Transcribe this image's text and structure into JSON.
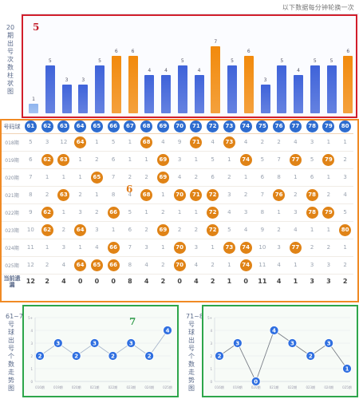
{
  "notice": "以下数据每分钟轮换一次",
  "bar_panel": {
    "side_label": "20期出号次数柱状图",
    "marker": "5",
    "colors": {
      "normal": "#3f63d9",
      "max": "#f28a0c",
      "min": "#8fb4ee"
    }
  },
  "chart_data": [
    {
      "type": "bar",
      "categories": [
        "61",
        "62",
        "63",
        "64",
        "65",
        "66",
        "67",
        "68",
        "69",
        "70",
        "71",
        "72",
        "73",
        "74",
        "75",
        "76",
        "77",
        "78",
        "79",
        "80"
      ],
      "values": [
        1,
        5,
        3,
        3,
        5,
        6,
        6,
        4,
        4,
        5,
        4,
        7,
        5,
        6,
        3,
        5,
        4,
        5,
        5,
        6
      ],
      "ylim": [
        0,
        8
      ]
    },
    {
      "type": "line",
      "x": [
        "016期",
        "019期",
        "020期",
        "021期",
        "022期",
        "023期",
        "024期",
        "025期"
      ],
      "values": [
        2,
        3,
        2,
        3,
        2,
        3,
        2,
        4
      ],
      "ylim": [
        0,
        5
      ],
      "yticks": [
        "0",
        "1",
        "2",
        "3",
        "4",
        "5+"
      ]
    },
    {
      "type": "line",
      "x": [
        "016期",
        "019期",
        "020期",
        "021期",
        "022期",
        "023期",
        "024期",
        "025期"
      ],
      "values": [
        2,
        3,
        0,
        4,
        3,
        2,
        3,
        1
      ],
      "ylim": [
        0,
        5
      ],
      "yticks": [
        "0",
        "1",
        "2",
        "3",
        "4",
        "5+"
      ]
    }
  ],
  "table_panel": {
    "marker": "6",
    "header_label": "号码球",
    "numbers": [
      "61",
      "62",
      "63",
      "64",
      "65",
      "66",
      "67",
      "68",
      "69",
      "70",
      "71",
      "72",
      "73",
      "74",
      "75",
      "76",
      "77",
      "78",
      "79",
      "80"
    ],
    "rows": [
      {
        "label": "018期",
        "cells": [
          "5",
          "3",
          "12",
          "64",
          "1",
          "5",
          "1",
          "68",
          "4",
          "9",
          "71",
          "4",
          "73",
          "4",
          "2",
          "2",
          "4",
          "3",
          "1",
          "1"
        ]
      },
      {
        "label": "019期",
        "cells": [
          "6",
          "62",
          "63",
          "1",
          "2",
          "6",
          "1",
          "1",
          "69",
          "3",
          "1",
          "5",
          "1",
          "74",
          "5",
          "7",
          "77",
          "5",
          "79",
          "2"
        ]
      },
      {
        "label": "020期",
        "cells": [
          "7",
          "1",
          "1",
          "1",
          "65",
          "7",
          "2",
          "2",
          "69",
          "4",
          "2",
          "6",
          "2",
          "1",
          "6",
          "8",
          "1",
          "6",
          "1",
          "3"
        ]
      },
      {
        "label": "021期",
        "cells": [
          "8",
          "2",
          "63",
          "2",
          "1",
          "8",
          "4",
          "68",
          "1",
          "70",
          "71",
          "72",
          "3",
          "2",
          "7",
          "76",
          "2",
          "78",
          "2",
          "4"
        ]
      },
      {
        "label": "022期",
        "cells": [
          "9",
          "62",
          "1",
          "3",
          "2",
          "66",
          "5",
          "1",
          "2",
          "1",
          "1",
          "72",
          "4",
          "3",
          "8",
          "1",
          "3",
          "78",
          "79",
          "5"
        ]
      },
      {
        "label": "023期",
        "cells": [
          "10",
          "62",
          "2",
          "64",
          "3",
          "1",
          "6",
          "2",
          "69",
          "2",
          "2",
          "72",
          "5",
          "4",
          "9",
          "2",
          "4",
          "1",
          "1",
          "80"
        ]
      },
      {
        "label": "024期",
        "cells": [
          "11",
          "1",
          "3",
          "1",
          "4",
          "66",
          "7",
          "3",
          "1",
          "70",
          "3",
          "1",
          "73",
          "74",
          "10",
          "3",
          "77",
          "2",
          "2",
          "1"
        ]
      },
      {
        "label": "025期",
        "cells": [
          "12",
          "2",
          "4",
          "64",
          "65",
          "66",
          "8",
          "4",
          "2",
          "70",
          "4",
          "2",
          "1",
          "74",
          "11",
          "4",
          "1",
          "3",
          "3",
          "2"
        ]
      }
    ],
    "summary_label": "当前遗漏",
    "summary": [
      "12",
      "2",
      "4",
      "0",
      "0",
      "0",
      "8",
      "4",
      "2",
      "0",
      "4",
      "2",
      "1",
      "0",
      "11",
      "4",
      "1",
      "3",
      "3",
      "2"
    ]
  },
  "trend_a": {
    "marker": "7",
    "side_label": "61~70号球出号个数走势图"
  },
  "trend_b": {
    "side_label": "71~80号球出号个数走势图"
  }
}
